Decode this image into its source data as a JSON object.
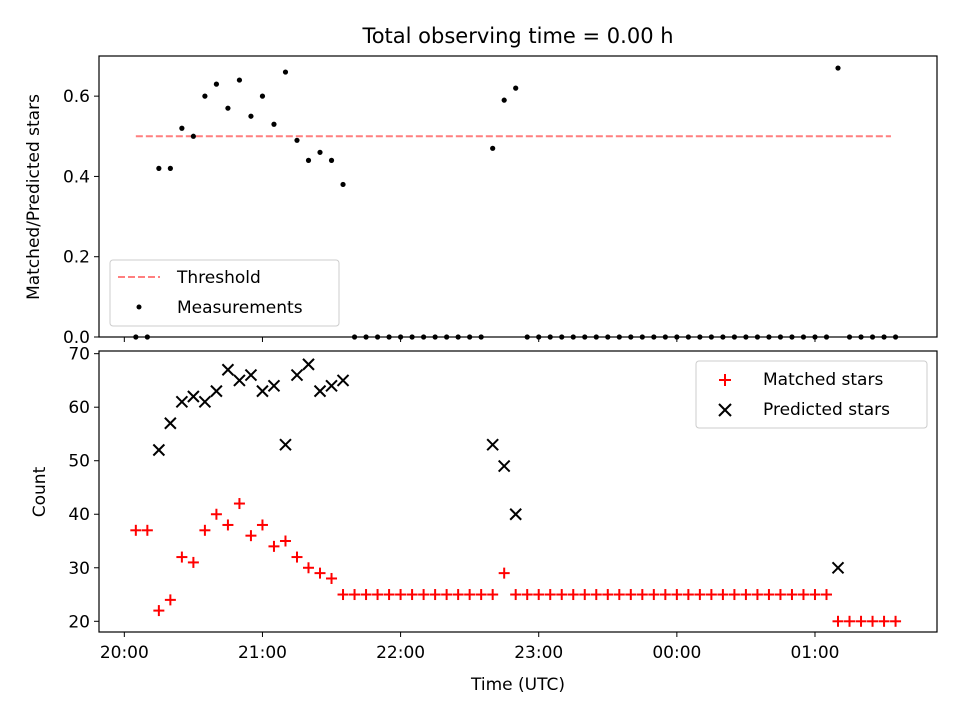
{
  "figure": {
    "title": "Total observing time = 0.00 h",
    "x_axis_label": "Time (UTC)"
  },
  "chart_data": [
    {
      "type": "scatter",
      "panel": "top",
      "ylabel": "Matched/Predicted stars",
      "xlim": [
        "2023-01-01T19:49",
        "2023-01-02T01:53"
      ],
      "ylim": [
        0.0,
        0.7
      ],
      "yticks": [
        0.0,
        0.2,
        0.4,
        0.6
      ],
      "ytick_labels": [
        "0.0",
        "0.2",
        "0.4",
        "0.6"
      ],
      "legend": {
        "position": "lower left",
        "entries": [
          "Threshold",
          "Measurements"
        ]
      },
      "threshold": {
        "name": "Threshold",
        "value": 0.5,
        "x_range": [
          "20:05",
          "01:33"
        ],
        "color": "#ff7f7f",
        "style": "dashed"
      },
      "series": [
        {
          "name": "Measurements",
          "marker": "point",
          "color": "#000000",
          "points": [
            [
              "20:05",
              0.0
            ],
            [
              "20:10",
              0.0
            ],
            [
              "20:15",
              0.42
            ],
            [
              "20:20",
              0.42
            ],
            [
              "20:25",
              0.52
            ],
            [
              "20:30",
              0.5
            ],
            [
              "20:35",
              0.6
            ],
            [
              "20:40",
              0.63
            ],
            [
              "20:45",
              0.57
            ],
            [
              "20:50",
              0.64
            ],
            [
              "20:55",
              0.55
            ],
            [
              "21:00",
              0.6
            ],
            [
              "21:05",
              0.53
            ],
            [
              "21:10",
              0.66
            ],
            [
              "21:15",
              0.49
            ],
            [
              "21:20",
              0.44
            ],
            [
              "21:25",
              0.46
            ],
            [
              "21:30",
              0.44
            ],
            [
              "21:35",
              0.38
            ],
            [
              "21:40",
              0.0
            ],
            [
              "21:45",
              0.0
            ],
            [
              "21:50",
              0.0
            ],
            [
              "21:55",
              0.0
            ],
            [
              "22:00",
              0.0
            ],
            [
              "22:05",
              0.0
            ],
            [
              "22:10",
              0.0
            ],
            [
              "22:15",
              0.0
            ],
            [
              "22:20",
              0.0
            ],
            [
              "22:25",
              0.0
            ],
            [
              "22:30",
              0.0
            ],
            [
              "22:35",
              0.0
            ],
            [
              "22:40",
              0.47
            ],
            [
              "22:45",
              0.59
            ],
            [
              "22:50",
              0.62
            ],
            [
              "22:55",
              0.0
            ],
            [
              "23:00",
              0.0
            ],
            [
              "23:05",
              0.0
            ],
            [
              "23:10",
              0.0
            ],
            [
              "23:15",
              0.0
            ],
            [
              "23:20",
              0.0
            ],
            [
              "23:25",
              0.0
            ],
            [
              "23:30",
              0.0
            ],
            [
              "23:35",
              0.0
            ],
            [
              "23:40",
              0.0
            ],
            [
              "23:45",
              0.0
            ],
            [
              "23:50",
              0.0
            ],
            [
              "23:55",
              0.0
            ],
            [
              "00:00",
              0.0
            ],
            [
              "00:05",
              0.0
            ],
            [
              "00:10",
              0.0
            ],
            [
              "00:15",
              0.0
            ],
            [
              "00:20",
              0.0
            ],
            [
              "00:25",
              0.0
            ],
            [
              "00:30",
              0.0
            ],
            [
              "00:35",
              0.0
            ],
            [
              "00:40",
              0.0
            ],
            [
              "00:45",
              0.0
            ],
            [
              "00:50",
              0.0
            ],
            [
              "00:55",
              0.0
            ],
            [
              "01:00",
              0.0
            ],
            [
              "01:05",
              0.0
            ],
            [
              "01:10",
              0.67
            ],
            [
              "01:15",
              0.0
            ],
            [
              "01:20",
              0.0
            ],
            [
              "01:25",
              0.0
            ],
            [
              "01:30",
              0.0
            ],
            [
              "01:35",
              0.0
            ]
          ]
        }
      ]
    },
    {
      "type": "scatter",
      "panel": "bottom",
      "ylabel": "Count",
      "xlabel": "Time (UTC)",
      "xlim": [
        "2023-01-01T19:49",
        "2023-01-02T01:53"
      ],
      "ylim": [
        18,
        70.5
      ],
      "yticks": [
        20,
        30,
        40,
        50,
        60,
        70
      ],
      "ytick_labels": [
        "20",
        "30",
        "40",
        "50",
        "60",
        "70"
      ],
      "xticks": [
        "20:00",
        "21:00",
        "22:00",
        "23:00",
        "00:00",
        "01:00"
      ],
      "xtick_labels": [
        "20:00",
        "21:00",
        "22:00",
        "23:00",
        "00:00",
        "01:00"
      ],
      "legend": {
        "position": "upper right",
        "entries": [
          "Matched stars",
          "Predicted stars"
        ]
      },
      "series": [
        {
          "name": "Matched stars",
          "marker": "plus",
          "color": "#ff0000",
          "points": [
            [
              "20:05",
              37
            ],
            [
              "20:10",
              37
            ],
            [
              "20:15",
              22
            ],
            [
              "20:20",
              24
            ],
            [
              "20:25",
              32
            ],
            [
              "20:30",
              31
            ],
            [
              "20:35",
              37
            ],
            [
              "20:40",
              40
            ],
            [
              "20:45",
              38
            ],
            [
              "20:50",
              42
            ],
            [
              "20:55",
              36
            ],
            [
              "21:00",
              38
            ],
            [
              "21:05",
              34
            ],
            [
              "21:10",
              35
            ],
            [
              "21:15",
              32
            ],
            [
              "21:20",
              30
            ],
            [
              "21:25",
              29
            ],
            [
              "21:30",
              28
            ],
            [
              "21:35",
              25
            ],
            [
              "21:40",
              25
            ],
            [
              "21:45",
              25
            ],
            [
              "21:50",
              25
            ],
            [
              "21:55",
              25
            ],
            [
              "22:00",
              25
            ],
            [
              "22:05",
              25
            ],
            [
              "22:10",
              25
            ],
            [
              "22:15",
              25
            ],
            [
              "22:20",
              25
            ],
            [
              "22:25",
              25
            ],
            [
              "22:30",
              25
            ],
            [
              "22:35",
              25
            ],
            [
              "22:40",
              25
            ],
            [
              "22:45",
              29
            ],
            [
              "22:50",
              25
            ],
            [
              "22:55",
              25
            ],
            [
              "23:00",
              25
            ],
            [
              "23:05",
              25
            ],
            [
              "23:10",
              25
            ],
            [
              "23:15",
              25
            ],
            [
              "23:20",
              25
            ],
            [
              "23:25",
              25
            ],
            [
              "23:30",
              25
            ],
            [
              "23:35",
              25
            ],
            [
              "23:40",
              25
            ],
            [
              "23:45",
              25
            ],
            [
              "23:50",
              25
            ],
            [
              "23:55",
              25
            ],
            [
              "00:00",
              25
            ],
            [
              "00:05",
              25
            ],
            [
              "00:10",
              25
            ],
            [
              "00:15",
              25
            ],
            [
              "00:20",
              25
            ],
            [
              "00:25",
              25
            ],
            [
              "00:30",
              25
            ],
            [
              "00:35",
              25
            ],
            [
              "00:40",
              25
            ],
            [
              "00:45",
              25
            ],
            [
              "00:50",
              25
            ],
            [
              "00:55",
              25
            ],
            [
              "01:00",
              25
            ],
            [
              "01:05",
              25
            ],
            [
              "01:10",
              20
            ],
            [
              "01:15",
              20
            ],
            [
              "01:20",
              20
            ],
            [
              "01:25",
              20
            ],
            [
              "01:30",
              20
            ],
            [
              "01:35",
              20
            ]
          ]
        },
        {
          "name": "Predicted stars",
          "marker": "x",
          "color": "#000000",
          "points": [
            [
              "20:15",
              52
            ],
            [
              "20:20",
              57
            ],
            [
              "20:25",
              61
            ],
            [
              "20:30",
              62
            ],
            [
              "20:35",
              61
            ],
            [
              "20:40",
              63
            ],
            [
              "20:45",
              67
            ],
            [
              "20:50",
              65
            ],
            [
              "20:55",
              66
            ],
            [
              "21:00",
              63
            ],
            [
              "21:05",
              64
            ],
            [
              "21:10",
              53
            ],
            [
              "21:15",
              66
            ],
            [
              "21:20",
              68
            ],
            [
              "21:25",
              63
            ],
            [
              "21:30",
              64
            ],
            [
              "21:35",
              65
            ],
            [
              "22:40",
              53
            ],
            [
              "22:45",
              49
            ],
            [
              "22:50",
              40
            ],
            [
              "01:10",
              30
            ]
          ]
        }
      ]
    }
  ]
}
